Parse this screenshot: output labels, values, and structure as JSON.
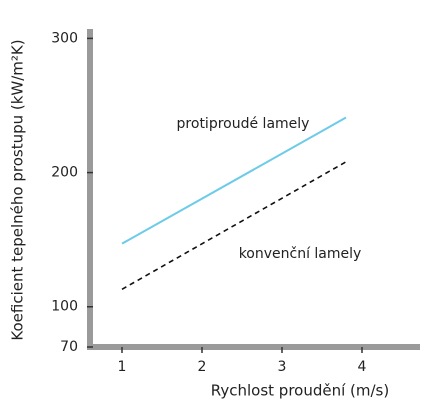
{
  "chart_data": {
    "type": "line",
    "x_label": "Rychlost proudění (m/s)",
    "y_label": "Koeficient tepelného prostupu (kW/m²K)",
    "x": [
      1,
      3.8
    ],
    "series": [
      {
        "name": "protiproudé lamely",
        "color": "#6ccbe8",
        "values": [
          147,
          241
        ]
      },
      {
        "name": "konvenční lamely",
        "color": "#111111",
        "dashed": true,
        "values": [
          113,
          208
        ]
      }
    ],
    "xlim": [
      0.6,
      4.725
    ],
    "xticks": [
      1,
      2,
      3,
      4
    ],
    "ylim": [
      70,
      307
    ],
    "yticks": [
      70,
      100,
      200,
      300
    ]
  }
}
